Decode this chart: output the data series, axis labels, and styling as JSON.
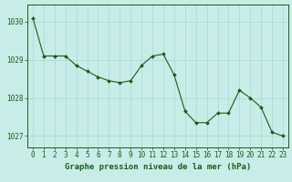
{
  "hours": [
    0,
    1,
    2,
    3,
    4,
    5,
    6,
    7,
    8,
    9,
    10,
    11,
    12,
    13,
    14,
    15,
    16,
    17,
    18,
    19,
    20,
    21,
    22,
    23
  ],
  "pressure": [
    1030.1,
    1029.1,
    1029.1,
    1029.1,
    1028.85,
    1028.7,
    1028.55,
    1028.45,
    1028.4,
    1028.45,
    1028.85,
    1029.1,
    1029.15,
    1028.6,
    1027.65,
    1027.35,
    1027.35,
    1027.6,
    1027.6,
    1028.2,
    1028.0,
    1027.75,
    1027.1,
    1027.0
  ],
  "ylim": [
    1026.7,
    1030.45
  ],
  "yticks": [
    1027,
    1028,
    1029,
    1030
  ],
  "xticks": [
    0,
    1,
    2,
    3,
    4,
    5,
    6,
    7,
    8,
    9,
    10,
    11,
    12,
    13,
    14,
    15,
    16,
    17,
    18,
    19,
    20,
    21,
    22,
    23
  ],
  "line_color": "#1a5c1a",
  "marker_color": "#1a5c1a",
  "bg_color": "#c8ede8",
  "grid_color": "#a8d8d0",
  "xlabel": "Graphe pression niveau de la mer (hPa)",
  "xlabel_color": "#1a5c1a",
  "tick_label_color": "#1a5c1a",
  "border_color": "#1a5c1a",
  "tick_fontsize": 5.5,
  "xlabel_fontsize": 6.5
}
